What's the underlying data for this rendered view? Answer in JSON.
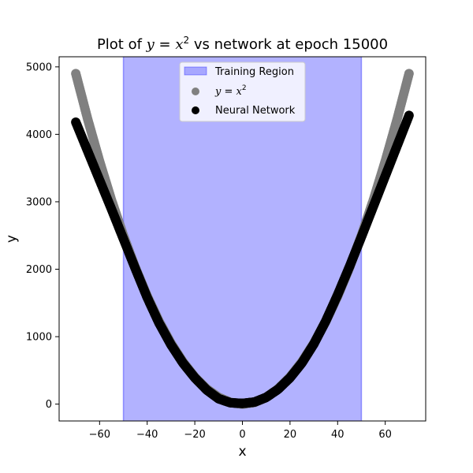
{
  "chart_data": {
    "type": "scatter",
    "title": "Plot of y = x² vs network at epoch 15000",
    "xlabel": "x",
    "ylabel": "y",
    "xlim": [
      -77,
      77
    ],
    "ylim": [
      -250,
      5150
    ],
    "xticks": [
      -60,
      -40,
      -20,
      0,
      20,
      40,
      60
    ],
    "yticks": [
      0,
      1000,
      2000,
      3000,
      4000,
      5000
    ],
    "shaded_region": {
      "name": "Training Region",
      "x_range": [
        -50,
        50
      ],
      "color": "#0000ff",
      "alpha": 0.3
    },
    "legend": {
      "placement": "top-center",
      "entries": [
        "Training Region",
        "y = x²",
        "Neural Network"
      ]
    },
    "series": [
      {
        "name": "y = x²",
        "color": "#808080",
        "x": [
          -70,
          -65,
          -60,
          -55,
          -50,
          -45,
          -40,
          -35,
          -30,
          -25,
          -20,
          -15,
          -10,
          -5,
          0,
          5,
          10,
          15,
          20,
          25,
          30,
          35,
          40,
          45,
          50,
          55,
          60,
          65,
          70
        ],
        "y": [
          4900,
          4225,
          3600,
          3025,
          2500,
          2025,
          1600,
          1225,
          900,
          625,
          400,
          225,
          100,
          25,
          0,
          25,
          100,
          225,
          400,
          625,
          900,
          1225,
          1600,
          2025,
          2500,
          3025,
          3600,
          4225,
          4900
        ]
      },
      {
        "name": "Neural Network",
        "color": "#000000",
        "x": [
          -70,
          -65,
          -60,
          -55,
          -50,
          -45,
          -40,
          -35,
          -30,
          -25,
          -20,
          -15,
          -10,
          -5,
          0,
          5,
          10,
          15,
          20,
          25,
          30,
          35,
          40,
          45,
          50,
          55,
          60,
          65,
          70
        ],
        "y": [
          4180,
          3750,
          3320,
          2890,
          2450,
          2010,
          1580,
          1200,
          880,
          610,
          390,
          210,
          80,
          20,
          10,
          30,
          100,
          220,
          390,
          610,
          890,
          1230,
          1620,
          2040,
          2480,
          2930,
          3380,
          3830,
          4280
        ]
      }
    ]
  }
}
